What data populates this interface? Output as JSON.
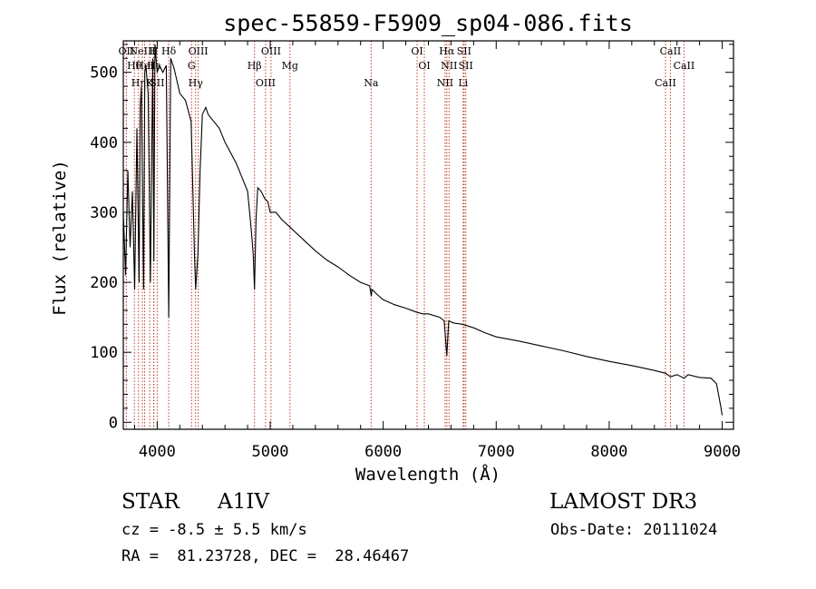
{
  "chart_data": {
    "type": "line",
    "title": "spec-55859-F5909_sp04-086.fits",
    "xlabel": "Wavelength (Å)",
    "ylabel": "Flux (relative)",
    "xlim": [
      3700,
      9100
    ],
    "ylim": [
      -10,
      545
    ],
    "xticks": [
      4000,
      5000,
      6000,
      7000,
      8000,
      9000
    ],
    "yticks": [
      0,
      100,
      200,
      300,
      400,
      500
    ],
    "grid": false,
    "series": [
      {
        "name": "flux",
        "x": [
          3700,
          3720,
          3740,
          3760,
          3780,
          3800,
          3820,
          3840,
          3850,
          3860,
          3880,
          3890,
          3900,
          3920,
          3940,
          3960,
          3970,
          3980,
          4000,
          4020,
          4050,
          4080,
          4102,
          4120,
          4150,
          4200,
          4250,
          4300,
          4330,
          4340,
          4360,
          4380,
          4400,
          4430,
          4450,
          4500,
          4550,
          4600,
          4650,
          4700,
          4750,
          4800,
          4830,
          4850,
          4861,
          4875,
          4890,
          4920,
          4950,
          4980,
          5000,
          5050,
          5100,
          5200,
          5300,
          5400,
          5500,
          5600,
          5700,
          5800,
          5880,
          5890,
          5895,
          5900,
          5950,
          6000,
          6100,
          6200,
          6300,
          6350,
          6400,
          6500,
          6540,
          6563,
          6580,
          6620,
          6700,
          6800,
          6900,
          7000,
          7200,
          7400,
          7600,
          7800,
          8000,
          8200,
          8400,
          8500,
          8542,
          8600,
          8662,
          8700,
          8800,
          8900,
          8950,
          8990,
          9000
        ],
        "values": [
          300,
          210,
          360,
          250,
          330,
          190,
          420,
          200,
          450,
          480,
          190,
          500,
          510,
          470,
          200,
          520,
          230,
          540,
          500,
          510,
          500,
          510,
          150,
          520,
          505,
          470,
          460,
          430,
          240,
          190,
          240,
          360,
          440,
          450,
          440,
          430,
          420,
          400,
          385,
          370,
          350,
          330,
          280,
          240,
          190,
          290,
          335,
          330,
          320,
          315,
          300,
          300,
          290,
          275,
          260,
          245,
          232,
          222,
          210,
          200,
          195,
          185,
          180,
          190,
          182,
          175,
          168,
          163,
          157,
          155,
          155,
          150,
          145,
          95,
          145,
          142,
          140,
          135,
          128,
          122,
          116,
          109,
          102,
          94,
          87,
          81,
          74,
          70,
          65,
          68,
          63,
          68,
          64,
          63,
          55,
          20,
          10
        ]
      }
    ],
    "lines": [
      {
        "wl": 3727,
        "label": "OII"
      },
      {
        "wl": 3798,
        "label": "Hθ"
      },
      {
        "wl": 3835,
        "label": "Hη"
      },
      {
        "wl": 3869,
        "label": "NeIII"
      },
      {
        "wl": 3889,
        "label": "HeI"
      },
      {
        "wl": 3934,
        "label": "K"
      },
      {
        "wl": 3969,
        "label": "H"
      },
      {
        "wl": 3970,
        "label": "Hε"
      },
      {
        "wl": 4000,
        "label": "SII"
      },
      {
        "wl": 4102,
        "label": "Hδ"
      },
      {
        "wl": 4304,
        "label": "G"
      },
      {
        "wl": 4340,
        "label": "Hγ"
      },
      {
        "wl": 4363,
        "label": "OIII"
      },
      {
        "wl": 4861,
        "label": "Hβ"
      },
      {
        "wl": 4959,
        "label": "OIII"
      },
      {
        "wl": 5007,
        "label": "OIII"
      },
      {
        "wl": 5175,
        "label": "Mg"
      },
      {
        "wl": 5893,
        "label": "Na"
      },
      {
        "wl": 6300,
        "label": "OI"
      },
      {
        "wl": 6364,
        "label": "OI"
      },
      {
        "wl": 6548,
        "label": "NII"
      },
      {
        "wl": 6563,
        "label": "Hα"
      },
      {
        "wl": 6583,
        "label": "NII"
      },
      {
        "wl": 6708,
        "label": "Li"
      },
      {
        "wl": 6716,
        "label": "SII"
      },
      {
        "wl": 6731,
        "label": "SII"
      },
      {
        "wl": 8498,
        "label": "CaII"
      },
      {
        "wl": 8542,
        "label": "CaII"
      },
      {
        "wl": 8662,
        "label": "CaII"
      }
    ]
  },
  "info": {
    "object_type": "STAR",
    "subclass": "A1IV",
    "survey": "LAMOST DR3",
    "redshift": "cz = -8.5 ± 5.5 km/s",
    "obs_date": "Obs-Date: 20111024",
    "coords": "RA =  81.23728, DEC =  28.46467"
  },
  "colors": {
    "line_marker": "#c0392b",
    "spectrum": "#000000",
    "background": "#ffffff"
  }
}
